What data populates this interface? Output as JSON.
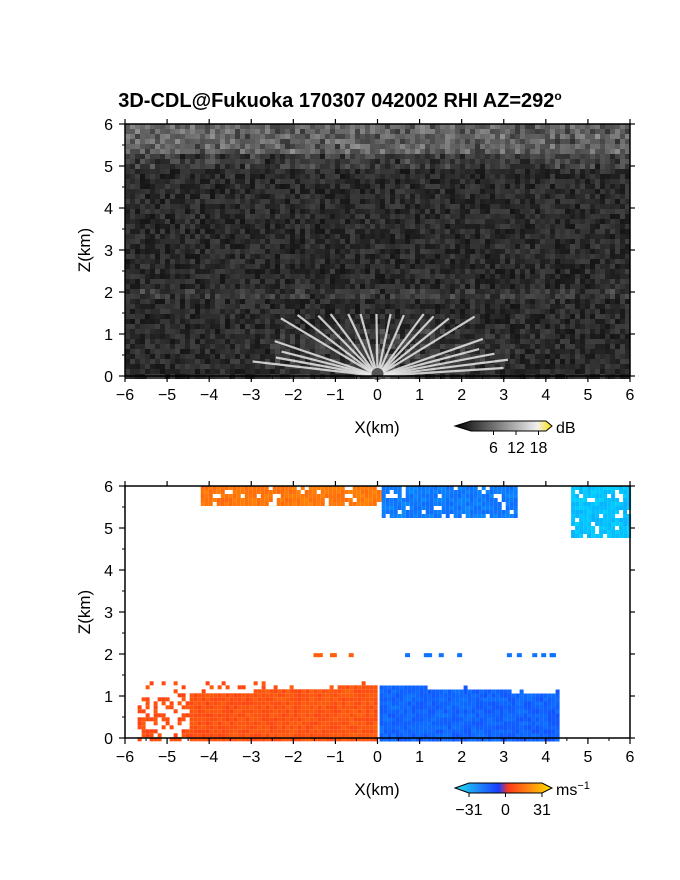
{
  "title": "3D-CDL@Fukuoka 170307 042002 RHI AZ=292",
  "title_degree": "o",
  "chart_data": [
    {
      "type": "heatmap",
      "name": "reflectivity",
      "xlabel": "X(km)",
      "ylabel": "Z(km)",
      "xlim": [
        -6,
        6
      ],
      "ylim": [
        0,
        6
      ],
      "xticks": [
        -6,
        -5,
        -4,
        -3,
        -2,
        -1,
        0,
        1,
        2,
        3,
        4,
        5,
        6
      ],
      "yticks": [
        0,
        1,
        2,
        3,
        4,
        5,
        6
      ],
      "colorbar": {
        "unit": "dB",
        "ticks": [
          6,
          12,
          18
        ],
        "range": [
          0,
          20
        ],
        "scale": "grayscale"
      }
    },
    {
      "type": "heatmap",
      "name": "doppler_velocity",
      "xlabel": "X(km)",
      "ylabel": "Z(km)",
      "xlim": [
        -6,
        6
      ],
      "ylim": [
        0,
        6
      ],
      "xticks": [
        -6,
        -5,
        -4,
        -3,
        -2,
        -1,
        0,
        1,
        2,
        3,
        4,
        5,
        6
      ],
      "yticks": [
        0,
        1,
        2,
        3,
        4,
        5,
        6
      ],
      "colorbar": {
        "unit": "ms",
        "unit_exp": "−1",
        "ticks": [
          "−31",
          "0",
          "31"
        ],
        "range": [
          -31,
          31
        ]
      },
      "regions": [
        {
          "x": [
            -4.2,
            0.1
          ],
          "z": [
            5.6,
            6.0
          ],
          "velocity": 18
        },
        {
          "x": [
            0.1,
            3.3
          ],
          "z": [
            5.3,
            6.0
          ],
          "velocity": -12
        },
        {
          "x": [
            4.6,
            6.0
          ],
          "z": [
            4.8,
            6.0
          ],
          "velocity": -26
        },
        {
          "x": [
            -5.7,
            -0.05
          ],
          "z": [
            0.0,
            1.35
          ],
          "velocity": 10
        },
        {
          "x": [
            0.05,
            4.3
          ],
          "z": [
            0.0,
            1.25
          ],
          "velocity": -8
        }
      ]
    }
  ],
  "colors": {
    "velocity_negative": "#1a3dff",
    "velocity_positive": "#ff3a1a",
    "velocity_far_negative": "#22e0f0",
    "velocity_far_positive": "#ffa020"
  }
}
